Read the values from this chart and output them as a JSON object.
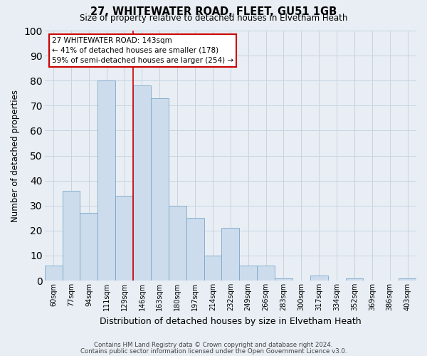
{
  "title1": "27, WHITEWATER ROAD, FLEET, GU51 1GB",
  "title2": "Size of property relative to detached houses in Elvetham Heath",
  "xlabel": "Distribution of detached houses by size in Elvetham Heath",
  "ylabel": "Number of detached properties",
  "bin_labels": [
    "60sqm",
    "77sqm",
    "94sqm",
    "111sqm",
    "129sqm",
    "146sqm",
    "163sqm",
    "180sqm",
    "197sqm",
    "214sqm",
    "232sqm",
    "249sqm",
    "266sqm",
    "283sqm",
    "300sqm",
    "317sqm",
    "334sqm",
    "352sqm",
    "369sqm",
    "386sqm",
    "403sqm"
  ],
  "bar_heights": [
    6,
    36,
    27,
    80,
    34,
    78,
    73,
    30,
    25,
    10,
    21,
    6,
    6,
    1,
    0,
    2,
    0,
    1,
    0,
    0,
    1
  ],
  "bar_color": "#ccdcec",
  "bar_edge_color": "#7aa8c8",
  "vline_x_index": 5,
  "vline_color": "#cc0000",
  "annotation_line1": "27 WHITEWATER ROAD: 143sqm",
  "annotation_line2": "← 41% of detached houses are smaller (178)",
  "annotation_line3": "59% of semi-detached houses are larger (254) →",
  "annotation_box_color": "#ffffff",
  "annotation_box_edge": "#cc0000",
  "ylim": [
    0,
    100
  ],
  "yticks": [
    0,
    10,
    20,
    30,
    40,
    50,
    60,
    70,
    80,
    90,
    100
  ],
  "grid_color": "#c8d4e0",
  "footer1": "Contains HM Land Registry data © Crown copyright and database right 2024.",
  "footer2": "Contains public sector information licensed under the Open Government Licence v3.0.",
  "bg_color": "#e8eef4",
  "plot_bg_color": "#e8eef4"
}
